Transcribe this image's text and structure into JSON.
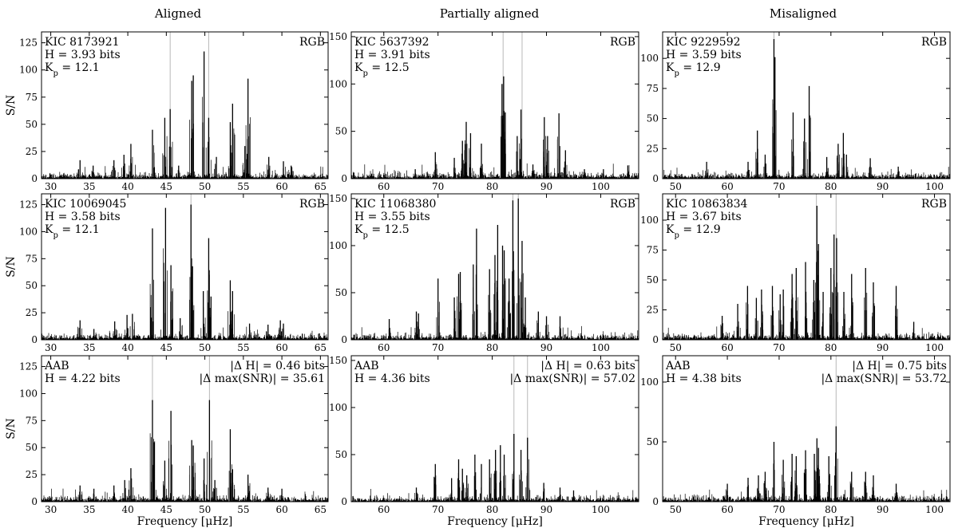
{
  "figure": {
    "column_titles": [
      "Aligned",
      "Partially aligned",
      "Misaligned"
    ],
    "xlabel": "Frequency [μHz]",
    "ylabel": "S/N"
  },
  "chart_data": [
    {
      "type": "line",
      "row": 0,
      "col": 0,
      "xlim": [
        28.8,
        66.0
      ],
      "ylim": [
        0,
        135
      ],
      "xticks": [
        30,
        35,
        40,
        45,
        50,
        55,
        60,
        65
      ],
      "yticks": [
        0,
        25,
        50,
        75,
        100,
        125
      ],
      "ylabel": "S/N",
      "xlabel": "",
      "info_left": [
        "KIC 8173921",
        "H = 3.93 bits",
        "K_p = 12.1"
      ],
      "info_right": [
        "RGB"
      ],
      "gray_lines": [
        45.5,
        50.5
      ],
      "peaks": [
        [
          33.8,
          17
        ],
        [
          35.5,
          12
        ],
        [
          38.2,
          17
        ],
        [
          39.5,
          22
        ],
        [
          40.4,
          32
        ],
        [
          43.2,
          45
        ],
        [
          44.8,
          56
        ],
        [
          45.5,
          64
        ],
        [
          46.6,
          12
        ],
        [
          48.3,
          90
        ],
        [
          48.5,
          95
        ],
        [
          49.9,
          117
        ],
        [
          50.5,
          56
        ],
        [
          51.5,
          20
        ],
        [
          53.3,
          52
        ],
        [
          53.6,
          69
        ],
        [
          55.2,
          30
        ],
        [
          55.6,
          92
        ],
        [
          58.3,
          20
        ],
        [
          60.2,
          16
        ],
        [
          61.2,
          12
        ]
      ],
      "noise_level": 6
    },
    {
      "type": "line",
      "row": 0,
      "col": 1,
      "xlim": [
        54.0,
        107.0
      ],
      "ylim": [
        0,
        155
      ],
      "xticks": [
        60,
        70,
        80,
        90,
        100
      ],
      "yticks": [
        0,
        50,
        100,
        150
      ],
      "ylabel": "",
      "xlabel": "",
      "info_left": [
        "KIC 5637392",
        "H = 3.91 bits",
        "K_p = 12.5"
      ],
      "info_right": [
        "RGB"
      ],
      "gray_lines": [
        82.0,
        85.5
      ],
      "peaks": [
        [
          65.8,
          10
        ],
        [
          69.5,
          28
        ],
        [
          73.0,
          22
        ],
        [
          74.5,
          40
        ],
        [
          75.2,
          60
        ],
        [
          76.0,
          48
        ],
        [
          78.0,
          37
        ],
        [
          81.8,
          100
        ],
        [
          82.1,
          108
        ],
        [
          82.4,
          70
        ],
        [
          84.6,
          45
        ],
        [
          85.3,
          73
        ],
        [
          87.5,
          15
        ],
        [
          89.6,
          65
        ],
        [
          90.2,
          45
        ],
        [
          92.3,
          69
        ],
        [
          93.5,
          30
        ],
        [
          97.0,
          10
        ],
        [
          100.5,
          10
        ],
        [
          105.0,
          14
        ]
      ],
      "noise_level": 8
    },
    {
      "type": "line",
      "row": 0,
      "col": 2,
      "xlim": [
        47.5,
        103.0
      ],
      "ylim": [
        0,
        122
      ],
      "xticks": [
        50,
        60,
        70,
        80,
        90,
        100
      ],
      "yticks": [
        0,
        25,
        50,
        75,
        100
      ],
      "ylabel": "",
      "xlabel": "",
      "info_left": [
        "KIC 9229592",
        "H = 3.59 bits",
        "K_p = 12.9"
      ],
      "info_right": [
        "RGB"
      ],
      "gray_lines": [
        69.0
      ],
      "peaks": [
        [
          56.0,
          14
        ],
        [
          64.0,
          14
        ],
        [
          65.8,
          40
        ],
        [
          67.3,
          20
        ],
        [
          69.0,
          116
        ],
        [
          69.2,
          101
        ],
        [
          72.7,
          55
        ],
        [
          74.9,
          50
        ],
        [
          75.8,
          77
        ],
        [
          79.2,
          18
        ],
        [
          81.4,
          29
        ],
        [
          82.4,
          38
        ],
        [
          83.0,
          20
        ],
        [
          87.6,
          17
        ],
        [
          93.0,
          10
        ]
      ],
      "noise_level": 5
    },
    {
      "type": "line",
      "row": 1,
      "col": 0,
      "xlim": [
        28.8,
        66.0
      ],
      "ylim": [
        0,
        135
      ],
      "xticks": [
        30,
        35,
        40,
        45,
        50,
        55,
        60,
        65
      ],
      "yticks": [
        0,
        25,
        50,
        75,
        100,
        125
      ],
      "ylabel": "S/N",
      "xlabel": "",
      "info_left": [
        "KIC 10069045",
        "H = 3.58 bits",
        "K_p = 12.1"
      ],
      "info_right": [
        "RGB"
      ],
      "gray_lines": [
        48.2
      ],
      "peaks": [
        [
          33.8,
          18
        ],
        [
          35.6,
          10
        ],
        [
          38.3,
          17
        ],
        [
          39.9,
          23
        ],
        [
          40.6,
          24
        ],
        [
          43.2,
          103
        ],
        [
          44.9,
          122
        ],
        [
          45.6,
          69
        ],
        [
          46.8,
          20
        ],
        [
          48.2,
          125
        ],
        [
          48.4,
          68
        ],
        [
          49.8,
          45
        ],
        [
          50.5,
          94
        ],
        [
          50.8,
          40
        ],
        [
          53.3,
          55
        ],
        [
          53.6,
          45
        ],
        [
          55.8,
          15
        ],
        [
          58.2,
          14
        ],
        [
          59.8,
          18
        ],
        [
          60.2,
          15
        ]
      ],
      "noise_level": 6
    },
    {
      "type": "line",
      "row": 1,
      "col": 1,
      "xlim": [
        54.0,
        107.0
      ],
      "ylim": [
        0,
        155
      ],
      "xticks": [
        60,
        70,
        80,
        90,
        100
      ],
      "yticks": [
        0,
        50,
        100,
        150
      ],
      "ylabel": "",
      "xlabel": "",
      "info_left": [
        "KIC 11068380",
        "H = 3.55 bits",
        "K_p = 12.5"
      ],
      "info_right": [
        "RGB"
      ],
      "gray_lines": [
        83.8,
        84.8
      ],
      "peaks": [
        [
          61.0,
          22
        ],
        [
          66.0,
          30
        ],
        [
          66.4,
          28
        ],
        [
          70.0,
          65
        ],
        [
          73.0,
          45
        ],
        [
          73.8,
          70
        ],
        [
          74.1,
          72
        ],
        [
          76.5,
          80
        ],
        [
          77.1,
          118
        ],
        [
          79.5,
          75
        ],
        [
          80.5,
          90
        ],
        [
          81.0,
          122
        ],
        [
          81.9,
          100
        ],
        [
          82.2,
          95
        ],
        [
          83.1,
          65
        ],
        [
          83.8,
          148
        ],
        [
          84.8,
          150
        ],
        [
          85.5,
          105
        ],
        [
          86.1,
          45
        ],
        [
          88.5,
          30
        ],
        [
          90.0,
          25
        ],
        [
          92.5,
          25
        ]
      ],
      "noise_level": 8
    },
    {
      "type": "line",
      "row": 1,
      "col": 2,
      "xlim": [
        47.5,
        103.0
      ],
      "ylim": [
        0,
        122
      ],
      "xticks": [
        50,
        60,
        70,
        80,
        90,
        100
      ],
      "yticks": [
        0,
        25,
        50,
        75,
        100
      ],
      "ylabel": "",
      "xlabel": "",
      "info_left": [
        "KIC 10863834",
        "H = 3.67 bits",
        "K_p = 12.9"
      ],
      "info_right": [
        "RGB"
      ],
      "gray_lines": [
        77.2,
        81.0
      ],
      "peaks": [
        [
          59.0,
          20
        ],
        [
          62.0,
          30
        ],
        [
          63.9,
          45
        ],
        [
          65.6,
          35
        ],
        [
          66.6,
          42
        ],
        [
          68.7,
          45
        ],
        [
          70.2,
          38
        ],
        [
          70.8,
          42
        ],
        [
          72.5,
          55
        ],
        [
          73.3,
          60
        ],
        [
          75.1,
          65
        ],
        [
          76.7,
          50
        ],
        [
          77.3,
          112
        ],
        [
          77.6,
          80
        ],
        [
          78.5,
          40
        ],
        [
          80.0,
          60
        ],
        [
          80.6,
          88
        ],
        [
          81.1,
          85
        ],
        [
          82.5,
          40
        ],
        [
          84.0,
          55
        ],
        [
          86.7,
          60
        ],
        [
          88.2,
          48
        ],
        [
          92.6,
          45
        ],
        [
          96.0,
          15
        ]
      ],
      "noise_level": 6
    },
    {
      "type": "line",
      "row": 2,
      "col": 0,
      "xlim": [
        28.8,
        66.0
      ],
      "ylim": [
        0,
        135
      ],
      "xticks": [
        30,
        35,
        40,
        45,
        50,
        55,
        60,
        65
      ],
      "yticks": [
        0,
        25,
        50,
        75,
        100,
        125
      ],
      "ylabel": "S/N",
      "xlabel": "Frequency [μHz]",
      "info_left": [
        "AAB",
        "H = 4.22 bits"
      ],
      "info_right": [
        "|Δ H| = 0.46 bits",
        "|Δ max(SNR)| = 35.61"
      ],
      "gray_lines": [
        43.2,
        50.6
      ],
      "peaks": [
        [
          33.8,
          15
        ],
        [
          35.6,
          12
        ],
        [
          38.2,
          15
        ],
        [
          39.6,
          20
        ],
        [
          40.4,
          31
        ],
        [
          43.2,
          94
        ],
        [
          43.4,
          55
        ],
        [
          44.8,
          38
        ],
        [
          45.6,
          84
        ],
        [
          48.3,
          57
        ],
        [
          48.5,
          52
        ],
        [
          49.9,
          40
        ],
        [
          50.6,
          94
        ],
        [
          51.3,
          20
        ],
        [
          53.3,
          67
        ],
        [
          53.6,
          30
        ],
        [
          55.6,
          25
        ],
        [
          58.2,
          13
        ],
        [
          60.0,
          12
        ]
      ],
      "noise_level": 6
    },
    {
      "type": "line",
      "row": 2,
      "col": 1,
      "xlim": [
        54.0,
        107.0
      ],
      "ylim": [
        0,
        155
      ],
      "xticks": [
        60,
        70,
        80,
        90,
        100
      ],
      "yticks": [
        0,
        50,
        100,
        150
      ],
      "ylabel": "",
      "xlabel": "Frequency [μHz]",
      "info_left": [
        "AAB",
        "H = 4.36 bits"
      ],
      "info_right": [
        "|Δ H| = 0.63 bits",
        "|Δ max(SNR)| = 57.02"
      ],
      "gray_lines": [
        84.0,
        86.5
      ],
      "peaks": [
        [
          66.0,
          15
        ],
        [
          69.5,
          40
        ],
        [
          72.5,
          25
        ],
        [
          73.8,
          45
        ],
        [
          74.5,
          35
        ],
        [
          75.3,
          28
        ],
        [
          76.8,
          50
        ],
        [
          78.0,
          40
        ],
        [
          79.5,
          45
        ],
        [
          80.6,
          55
        ],
        [
          81.5,
          60
        ],
        [
          82.2,
          50
        ],
        [
          84.0,
          72
        ],
        [
          85.3,
          55
        ],
        [
          86.5,
          68
        ],
        [
          89.5,
          20
        ],
        [
          92.5,
          15
        ],
        [
          95.0,
          12
        ]
      ],
      "noise_level": 7
    },
    {
      "type": "line",
      "row": 2,
      "col": 2,
      "xlim": [
        47.5,
        103.0
      ],
      "ylim": [
        0,
        122
      ],
      "xticks": [
        50,
        60,
        70,
        80,
        90,
        100
      ],
      "yticks": [
        0,
        50,
        100
      ],
      "ylabel": "",
      "xlabel": "Frequency [μHz]",
      "info_left": [
        "AAB",
        "H = 4.38 bits"
      ],
      "info_right": [
        "|Δ H| = 0.75 bits",
        "|Δ max(SNR)| = 53.72"
      ],
      "gray_lines": [
        81.0
      ],
      "peaks": [
        [
          60.0,
          15
        ],
        [
          64.0,
          20
        ],
        [
          66.0,
          22
        ],
        [
          67.3,
          25
        ],
        [
          69.0,
          50
        ],
        [
          70.8,
          35
        ],
        [
          72.5,
          40
        ],
        [
          73.3,
          38
        ],
        [
          75.1,
          43
        ],
        [
          76.8,
          40
        ],
        [
          77.3,
          53
        ],
        [
          77.6,
          45
        ],
        [
          79.6,
          38
        ],
        [
          81.0,
          63
        ],
        [
          84.0,
          25
        ],
        [
          86.7,
          25
        ],
        [
          88.2,
          22
        ],
        [
          92.6,
          15
        ]
      ],
      "noise_level": 6
    }
  ]
}
